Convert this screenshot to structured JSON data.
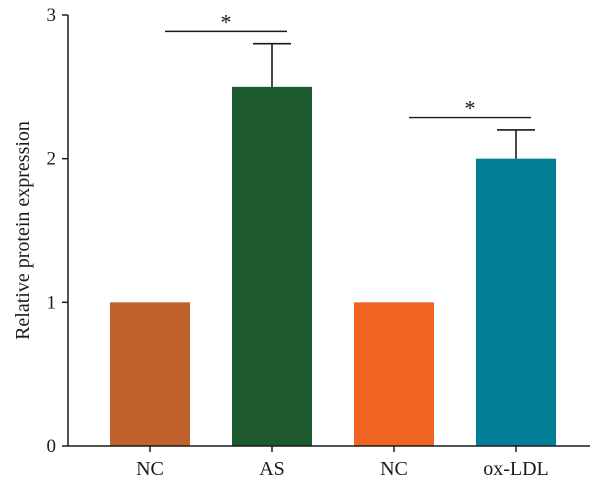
{
  "chart_data": {
    "type": "bar",
    "categories": [
      "NC",
      "AS",
      "NC",
      "ox-LDL"
    ],
    "values": [
      1.0,
      2.5,
      1.0,
      2.0
    ],
    "errors": [
      0,
      0.3,
      0,
      0.2
    ],
    "colors": [
      "#c0622b",
      "#1d5a2f",
      "#f06424",
      "#047e97"
    ],
    "ylabel": "Relative protein expression",
    "ylim": [
      0,
      3
    ],
    "yticks": [
      0,
      1,
      2,
      3
    ],
    "grid": false,
    "significance": [
      {
        "from": 0,
        "to": 1,
        "label": "*",
        "level": 2.9
      },
      {
        "from": 2,
        "to": 3,
        "label": "*",
        "level": 2.3
      }
    ]
  }
}
